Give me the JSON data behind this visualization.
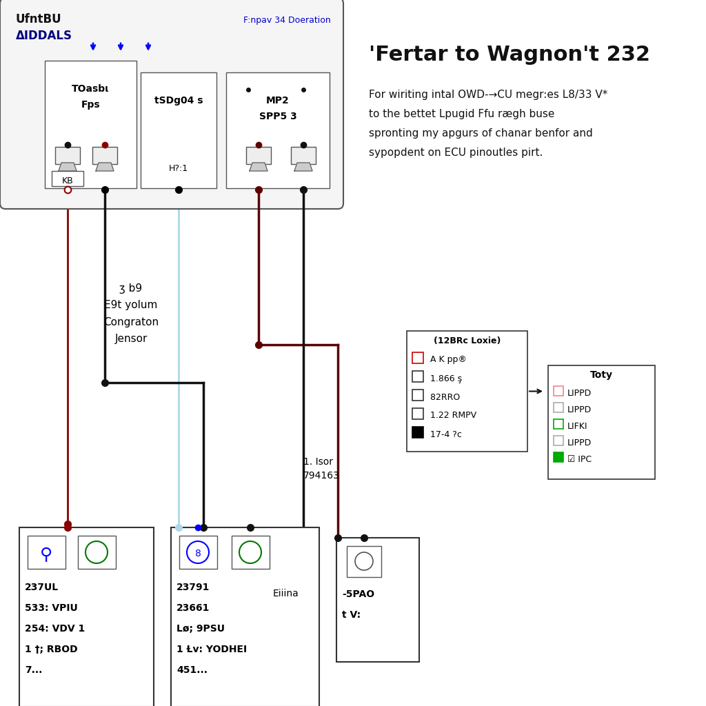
{
  "bg_color": "#ffffff",
  "title": "'Fertar to Wagnon't 232",
  "description_lines": [
    "For wiriting intal OWD-→CU megr:es L8/33 V*",
    "to the bettet Lpugid Ffu rægh buse",
    "spronting my apgurs of chanar benfor and",
    "sypopdent on ECU pinoutles pirt."
  ],
  "top_box_label1": "UfntBU",
  "top_box_label2": "ΔIDDALS",
  "top_box_label3": "F:npav 34 Doeration",
  "sub_labels": [
    [
      "TOasbι",
      "Fps"
    ],
    [
      "tSDg04 s",
      ""
    ],
    [
      "MP2",
      "SPP5 3"
    ]
  ],
  "kb_label": "KB",
  "h_label": "H?:1",
  "mid_text": "ʒ b9\nE9t yolum\nCongraton\nJensor",
  "isor_text": "1. Isor\n794163",
  "legend_title": "(12BRc Loxie)",
  "legend_items": [
    {
      "sq_color": "#cc0000",
      "label": " A K pp®"
    },
    {
      "sq_color": "#333333",
      "label": " 1.866 ş"
    },
    {
      "sq_color": "#333333",
      "label": " 82RRO"
    },
    {
      "sq_color": "#333333",
      "label": " 1.22 RMPV"
    },
    {
      "sq_color": "#000000",
      "filled": true,
      "label": " 17-4 ?c"
    }
  ],
  "toty_title": "Toty",
  "toty_items": [
    {
      "sq_color": "#ee8888",
      "label": "LIPPD"
    },
    {
      "sq_color": "#aaaaaa",
      "label": "LIPPD"
    },
    {
      "sq_color": "#00aa00",
      "label": "LIFKI"
    },
    {
      "sq_color": "#aaaaaa",
      "label": "LIPPD"
    },
    {
      "sq_color": "#00aa00",
      "filled": true,
      "label": "☑ IPC"
    }
  ],
  "box1_labels": [
    "237UL",
    "533: VPIU",
    "254: VDV 1",
    "1 †; RBOD",
    "7..."
  ],
  "box2_labels": [
    "23791",
    "23661",
    "Lø; 9PSU",
    "1 Ɫv: YODHEI",
    "451..."
  ],
  "box2_extra": "Eiiina",
  "box3_labels": [
    "-5PAO",
    "t V:"
  ]
}
